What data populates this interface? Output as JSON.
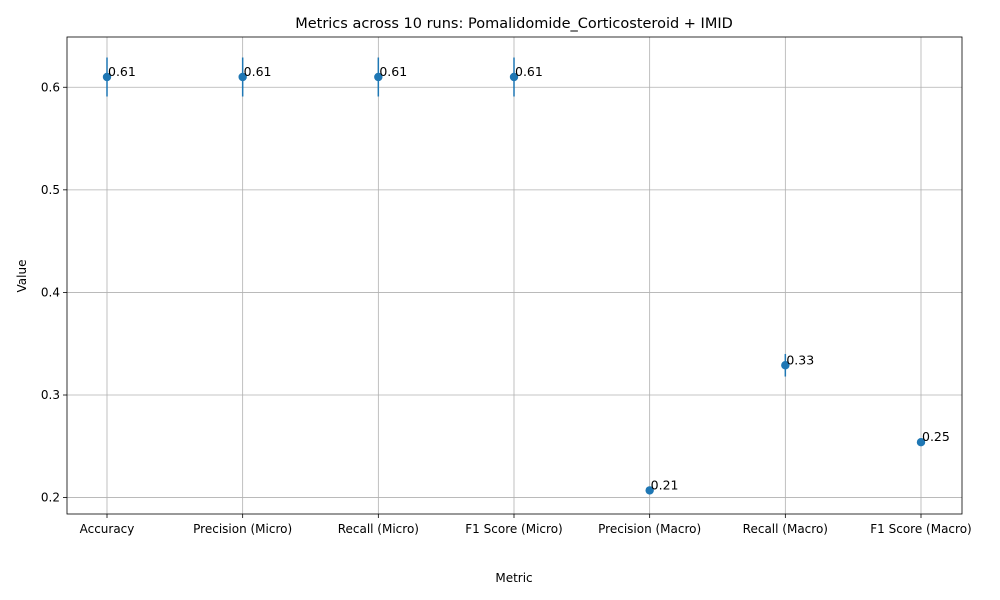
{
  "chart_data": {
    "type": "scatter",
    "title": "Metrics across 10 runs: Pomalidomide_Corticosteroid + IMID",
    "xlabel": "Metric",
    "ylabel": "Value",
    "categories": [
      "Accuracy",
      "Precision (Micro)",
      "Recall (Micro)",
      "F1 Score (Micro)",
      "Precision (Macro)",
      "Recall (Macro)",
      "F1 Score (Macro)"
    ],
    "values": [
      0.61,
      0.61,
      0.61,
      0.61,
      0.207,
      0.329,
      0.254
    ],
    "error": [
      0.019,
      0.019,
      0.019,
      0.019,
      0.003,
      0.011,
      0.003
    ],
    "data_labels": [
      "0.61",
      "0.61",
      "0.61",
      "0.61",
      "0.21",
      "0.33",
      "0.25"
    ],
    "ylim": [
      0.184,
      0.649
    ],
    "yticks": [
      0.2,
      0.3,
      0.4,
      0.5,
      0.6
    ],
    "ytick_labels": [
      "0.2",
      "0.3",
      "0.4",
      "0.5",
      "0.6"
    ],
    "grid": true,
    "color": "#1f77b4"
  }
}
